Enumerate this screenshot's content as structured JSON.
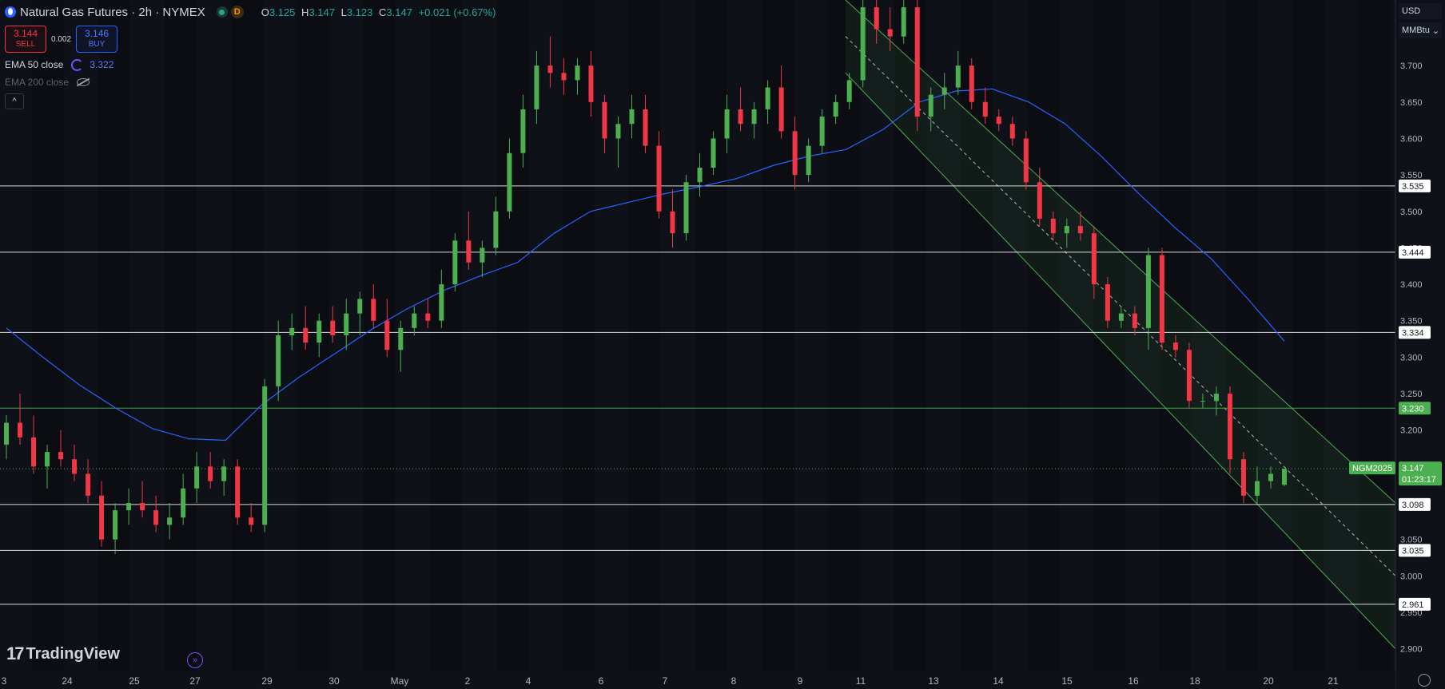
{
  "header": {
    "title": "Natural Gas Futures · 2h · NYMEX",
    "interval_badge": "D",
    "ohlc": {
      "o_label": "O",
      "o": "3.125",
      "h_label": "H",
      "h": "3.147",
      "l_label": "L",
      "l": "3.123",
      "c_label": "C",
      "c": "3.147",
      "change": "+0.021 (+0.67%)"
    }
  },
  "trade": {
    "sell_price": "3.144",
    "sell_label": "SELL",
    "spread": "0.002",
    "buy_price": "3.146",
    "buy_label": "BUY"
  },
  "indicators": [
    {
      "name": "EMA 50 close",
      "value": "3.322",
      "visible": true
    },
    {
      "name": "EMA 200 close",
      "value": "",
      "visible": false
    }
  ],
  "price_axis": {
    "currency": "USD",
    "unit": "MMBtu",
    "ticks": [
      "3.700",
      "3.650",
      "3.600",
      "3.550",
      "3.500",
      "3.450",
      "3.400",
      "3.350",
      "3.300",
      "3.250",
      "3.200",
      "3.150",
      "3.100",
      "3.050",
      "3.000",
      "2.950",
      "2.900"
    ]
  },
  "time_axis": {
    "labels": [
      "3",
      "24",
      "25",
      "27",
      "29",
      "30",
      "May",
      "2",
      "4",
      "6",
      "7",
      "8",
      "9",
      "11",
      "13",
      "14",
      "15",
      "16",
      "18",
      "20",
      "21"
    ]
  },
  "brand": "TradingView",
  "chart_data": {
    "type": "candlestick",
    "symbol": "NGM2025",
    "last_price": "3.147",
    "countdown": "01:23:17",
    "ylim": [
      2.87,
      3.79
    ],
    "support_resistance_levels": [
      "3.535",
      "3.444",
      "3.334",
      "3.230",
      "3.098",
      "3.035",
      "2.961"
    ],
    "highlighted_level": "3.230",
    "channel": {
      "upper": [
        [
          0,
          3.79
        ],
        [
          158,
          3.1
        ]
      ],
      "lower": [
        [
          0,
          3.69
        ],
        [
          158,
          2.9
        ]
      ],
      "mid": [
        [
          0,
          3.74
        ],
        [
          158,
          3.0
        ]
      ]
    },
    "ema50": [
      [
        -60,
        3.34
      ],
      [
        -50,
        3.3
      ],
      [
        -40,
        3.262
      ],
      [
        -30,
        3.23
      ],
      [
        -20,
        3.202
      ],
      [
        -10,
        3.188
      ],
      [
        0,
        3.186
      ],
      [
        10,
        3.235
      ],
      [
        20,
        3.272
      ],
      [
        30,
        3.305
      ],
      [
        40,
        3.338
      ],
      [
        50,
        3.367
      ],
      [
        60,
        3.392
      ],
      [
        70,
        3.412
      ],
      [
        80,
        3.43
      ],
      [
        90,
        3.47
      ],
      [
        100,
        3.5
      ],
      [
        110,
        3.512
      ],
      [
        120,
        3.524
      ],
      [
        130,
        3.534
      ],
      [
        140,
        3.545
      ],
      [
        150,
        3.563
      ],
      [
        160,
        3.576
      ],
      [
        170,
        3.585
      ],
      [
        180,
        3.612
      ],
      [
        190,
        3.65
      ],
      [
        200,
        3.665
      ],
      [
        210,
        3.668
      ],
      [
        220,
        3.65
      ],
      [
        230,
        3.62
      ],
      [
        240,
        3.575
      ],
      [
        250,
        3.525
      ],
      [
        260,
        3.478
      ],
      [
        270,
        3.435
      ],
      [
        280,
        3.38
      ],
      [
        290,
        3.322
      ]
    ],
    "candles": [
      [
        3.18,
        3.22,
        3.16,
        3.21
      ],
      [
        3.21,
        3.25,
        3.18,
        3.19
      ],
      [
        3.19,
        3.22,
        3.14,
        3.15
      ],
      [
        3.15,
        3.18,
        3.12,
        3.17
      ],
      [
        3.17,
        3.2,
        3.15,
        3.16
      ],
      [
        3.16,
        3.18,
        3.13,
        3.14
      ],
      [
        3.14,
        3.16,
        3.1,
        3.11
      ],
      [
        3.11,
        3.13,
        3.04,
        3.05
      ],
      [
        3.05,
        3.1,
        3.03,
        3.09
      ],
      [
        3.09,
        3.12,
        3.07,
        3.1
      ],
      [
        3.1,
        3.13,
        3.08,
        3.09
      ],
      [
        3.09,
        3.11,
        3.06,
        3.07
      ],
      [
        3.07,
        3.1,
        3.05,
        3.08
      ],
      [
        3.08,
        3.14,
        3.07,
        3.12
      ],
      [
        3.12,
        3.17,
        3.1,
        3.15
      ],
      [
        3.15,
        3.17,
        3.12,
        3.13
      ],
      [
        3.13,
        3.16,
        3.11,
        3.15
      ],
      [
        3.15,
        3.16,
        3.07,
        3.08
      ],
      [
        3.08,
        3.1,
        3.06,
        3.07
      ],
      [
        3.07,
        3.27,
        3.06,
        3.26
      ],
      [
        3.26,
        3.35,
        3.24,
        3.33
      ],
      [
        3.33,
        3.36,
        3.31,
        3.34
      ],
      [
        3.34,
        3.37,
        3.31,
        3.32
      ],
      [
        3.32,
        3.36,
        3.3,
        3.35
      ],
      [
        3.35,
        3.37,
        3.32,
        3.33
      ],
      [
        3.33,
        3.38,
        3.31,
        3.36
      ],
      [
        3.36,
        3.39,
        3.33,
        3.38
      ],
      [
        3.38,
        3.4,
        3.34,
        3.35
      ],
      [
        3.35,
        3.38,
        3.3,
        3.31
      ],
      [
        3.31,
        3.35,
        3.28,
        3.34
      ],
      [
        3.34,
        3.37,
        3.33,
        3.36
      ],
      [
        3.36,
        3.38,
        3.34,
        3.35
      ],
      [
        3.35,
        3.42,
        3.34,
        3.4
      ],
      [
        3.4,
        3.47,
        3.39,
        3.46
      ],
      [
        3.46,
        3.5,
        3.42,
        3.43
      ],
      [
        3.43,
        3.46,
        3.41,
        3.45
      ],
      [
        3.45,
        3.52,
        3.44,
        3.5
      ],
      [
        3.5,
        3.6,
        3.49,
        3.58
      ],
      [
        3.58,
        3.66,
        3.56,
        3.64
      ],
      [
        3.64,
        3.72,
        3.62,
        3.7
      ],
      [
        3.7,
        3.74,
        3.67,
        3.69
      ],
      [
        3.69,
        3.71,
        3.66,
        3.68
      ],
      [
        3.68,
        3.71,
        3.66,
        3.7
      ],
      [
        3.7,
        3.72,
        3.63,
        3.65
      ],
      [
        3.65,
        3.66,
        3.58,
        3.6
      ],
      [
        3.6,
        3.63,
        3.56,
        3.62
      ],
      [
        3.62,
        3.66,
        3.6,
        3.64
      ],
      [
        3.64,
        3.66,
        3.58,
        3.59
      ],
      [
        3.59,
        3.61,
        3.49,
        3.5
      ],
      [
        3.5,
        3.53,
        3.45,
        3.47
      ],
      [
        3.47,
        3.55,
        3.46,
        3.54
      ],
      [
        3.54,
        3.58,
        3.52,
        3.56
      ],
      [
        3.56,
        3.61,
        3.55,
        3.6
      ],
      [
        3.6,
        3.66,
        3.58,
        3.64
      ],
      [
        3.64,
        3.67,
        3.61,
        3.62
      ],
      [
        3.62,
        3.65,
        3.6,
        3.64
      ],
      [
        3.64,
        3.68,
        3.62,
        3.67
      ],
      [
        3.67,
        3.7,
        3.6,
        3.61
      ],
      [
        3.61,
        3.63,
        3.53,
        3.55
      ],
      [
        3.55,
        3.6,
        3.54,
        3.59
      ],
      [
        3.59,
        3.64,
        3.58,
        3.63
      ],
      [
        3.63,
        3.66,
        3.62,
        3.65
      ],
      [
        3.65,
        3.69,
        3.64,
        3.68
      ],
      [
        3.68,
        3.8,
        3.67,
        3.78
      ],
      [
        3.78,
        3.79,
        3.73,
        3.75
      ],
      [
        3.75,
        3.78,
        3.72,
        3.74
      ],
      [
        3.74,
        3.79,
        3.73,
        3.78
      ],
      [
        3.78,
        3.79,
        3.61,
        3.63
      ],
      [
        3.63,
        3.67,
        3.61,
        3.66
      ],
      [
        3.66,
        3.69,
        3.64,
        3.67
      ],
      [
        3.67,
        3.72,
        3.66,
        3.7
      ],
      [
        3.7,
        3.71,
        3.64,
        3.65
      ],
      [
        3.65,
        3.67,
        3.62,
        3.63
      ],
      [
        3.63,
        3.64,
        3.61,
        3.62
      ],
      [
        3.62,
        3.63,
        3.59,
        3.6
      ],
      [
        3.6,
        3.61,
        3.53,
        3.54
      ],
      [
        3.54,
        3.56,
        3.48,
        3.49
      ],
      [
        3.49,
        3.5,
        3.46,
        3.47
      ],
      [
        3.47,
        3.49,
        3.45,
        3.48
      ],
      [
        3.48,
        3.5,
        3.46,
        3.47
      ],
      [
        3.47,
        3.48,
        3.38,
        3.4
      ],
      [
        3.4,
        3.41,
        3.34,
        3.35
      ],
      [
        3.35,
        3.37,
        3.34,
        3.36
      ],
      [
        3.36,
        3.37,
        3.33,
        3.34
      ],
      [
        3.34,
        3.45,
        3.31,
        3.44
      ],
      [
        3.44,
        3.45,
        3.31,
        3.32
      ],
      [
        3.32,
        3.33,
        3.3,
        3.31
      ],
      [
        3.31,
        3.32,
        3.23,
        3.24
      ],
      [
        3.24,
        3.25,
        3.23,
        3.24
      ],
      [
        3.24,
        3.26,
        3.22,
        3.25
      ],
      [
        3.25,
        3.26,
        3.14,
        3.16
      ],
      [
        3.16,
        3.17,
        3.1,
        3.11
      ],
      [
        3.11,
        3.15,
        3.1,
        3.13
      ],
      [
        3.13,
        3.15,
        3.12,
        3.14
      ],
      [
        3.125,
        3.147,
        3.123,
        3.147
      ]
    ]
  },
  "colors": {
    "background": "#0f1119",
    "up": "#4caf50",
    "down": "#f23645",
    "ema50": "#2962ff",
    "channel": "#4caf50",
    "level": "#ffffff",
    "highlighted_level": "#4caf50"
  }
}
